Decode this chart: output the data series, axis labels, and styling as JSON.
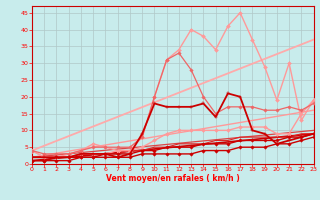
{
  "xlabel": "Vent moyen/en rafales ( km/h )",
  "xlim": [
    0,
    23
  ],
  "ylim": [
    0,
    47
  ],
  "yticks": [
    0,
    5,
    10,
    15,
    20,
    25,
    30,
    35,
    40,
    45
  ],
  "xticks": [
    0,
    1,
    2,
    3,
    4,
    5,
    6,
    7,
    8,
    9,
    10,
    11,
    12,
    13,
    14,
    15,
    16,
    17,
    18,
    19,
    20,
    21,
    22,
    23
  ],
  "bg_color": "#c8ecec",
  "grid_color": "#b0c8c8",
  "lines": [
    {
      "x": [
        0,
        1,
        2,
        3,
        4,
        5,
        6,
        7,
        8,
        9,
        10,
        11,
        12,
        13,
        14,
        15,
        16,
        17,
        18,
        19,
        20,
        21,
        22,
        23
      ],
      "y": [
        1,
        1,
        1,
        1,
        2,
        2,
        2,
        2,
        2,
        3,
        3,
        3,
        3,
        3,
        4,
        4,
        4,
        5,
        5,
        5,
        6,
        6,
        7,
        8
      ],
      "color": "#cc0000",
      "lw": 1.0,
      "marker": "D",
      "ms": 1.8,
      "zorder": 5
    },
    {
      "x": [
        0,
        1,
        2,
        3,
        4,
        5,
        6,
        7,
        8,
        9,
        10,
        11,
        12,
        13,
        14,
        15,
        16,
        17,
        18,
        19,
        20,
        21,
        22,
        23
      ],
      "y": [
        1,
        1,
        2,
        2,
        2,
        2,
        3,
        3,
        3,
        4,
        4,
        5,
        5,
        5,
        6,
        6,
        6,
        7,
        7,
        7,
        7,
        8,
        8,
        9
      ],
      "color": "#cc0000",
      "lw": 1.0,
      "marker": "D",
      "ms": 1.8,
      "zorder": 5
    },
    {
      "x": [
        0,
        1,
        2,
        3,
        4,
        5,
        6,
        7,
        8,
        9,
        10,
        11,
        12,
        13,
        14,
        15,
        16,
        17,
        18,
        19,
        20,
        21,
        22,
        23
      ],
      "y": [
        2,
        2,
        2,
        2,
        3,
        3,
        3,
        3,
        4,
        4,
        5,
        5,
        6,
        6,
        6,
        7,
        7,
        8,
        8,
        8,
        8,
        8,
        9,
        9
      ],
      "color": "#dd2222",
      "lw": 0.8,
      "marker": null,
      "ms": 0,
      "zorder": 4
    },
    {
      "x": [
        0,
        1,
        2,
        3,
        4,
        5,
        6,
        7,
        8,
        9,
        10,
        11,
        12,
        13,
        14,
        15,
        16,
        17,
        18,
        19,
        20,
        21,
        22,
        23
      ],
      "y": [
        4,
        2,
        2,
        2,
        3,
        3,
        3,
        4,
        4,
        5,
        7,
        9,
        10,
        10,
        10,
        10,
        10,
        11,
        11,
        11,
        9,
        9,
        15,
        19
      ],
      "color": "#ff9999",
      "lw": 1.0,
      "marker": "D",
      "ms": 2.0,
      "zorder": 4
    },
    {
      "x": [
        0,
        1,
        2,
        3,
        4,
        5,
        6,
        7,
        8,
        9,
        10,
        11,
        12,
        13,
        14,
        15,
        16,
        17,
        18,
        19,
        20,
        21,
        22,
        23
      ],
      "y": [
        2,
        2,
        2,
        2,
        3,
        3,
        3,
        2,
        3,
        9,
        18,
        17,
        17,
        17,
        18,
        14,
        21,
        20,
        10,
        9,
        6,
        7,
        8,
        9
      ],
      "color": "#cc0000",
      "lw": 1.3,
      "marker": "+",
      "ms": 3.5,
      "zorder": 6
    },
    {
      "x": [
        0,
        1,
        2,
        3,
        4,
        5,
        6,
        7,
        8,
        9,
        10,
        11,
        12,
        13,
        14,
        15,
        16,
        17,
        18,
        19,
        20,
        21,
        22,
        23
      ],
      "y": [
        4,
        2,
        2,
        3,
        4,
        6,
        5,
        4,
        4,
        8,
        20,
        31,
        34,
        40,
        38,
        34,
        41,
        45,
        37,
        29,
        19,
        30,
        13,
        19
      ],
      "color": "#ff9999",
      "lw": 1.0,
      "marker": "D",
      "ms": 2.0,
      "zorder": 4
    },
    {
      "x": [
        0,
        1,
        2,
        3,
        4,
        5,
        6,
        7,
        8,
        9,
        10,
        11,
        12,
        13,
        14,
        15,
        16,
        17,
        18,
        19,
        20,
        21,
        22,
        23
      ],
      "y": [
        4,
        3,
        3,
        3,
        4,
        5,
        5,
        5,
        5,
        8,
        20,
        31,
        33,
        28,
        20,
        15,
        17,
        17,
        17,
        16,
        16,
        17,
        16,
        18
      ],
      "color": "#ee6666",
      "lw": 0.9,
      "marker": "D",
      "ms": 1.8,
      "zorder": 4
    },
    {
      "x": [
        0,
        23
      ],
      "y": [
        4,
        37
      ],
      "color": "#ffaaaa",
      "lw": 1.3,
      "marker": null,
      "ms": 0,
      "zorder": 3
    },
    {
      "x": [
        0,
        23
      ],
      "y": [
        1,
        9
      ],
      "color": "#cc0000",
      "lw": 1.2,
      "marker": null,
      "ms": 0,
      "zorder": 3
    },
    {
      "x": [
        0,
        23
      ],
      "y": [
        2,
        16
      ],
      "color": "#ff9999",
      "lw": 1.0,
      "marker": null,
      "ms": 0,
      "zorder": 3
    },
    {
      "x": [
        0,
        23
      ],
      "y": [
        2,
        10
      ],
      "color": "#dd4444",
      "lw": 0.9,
      "marker": null,
      "ms": 0,
      "zorder": 3
    }
  ]
}
